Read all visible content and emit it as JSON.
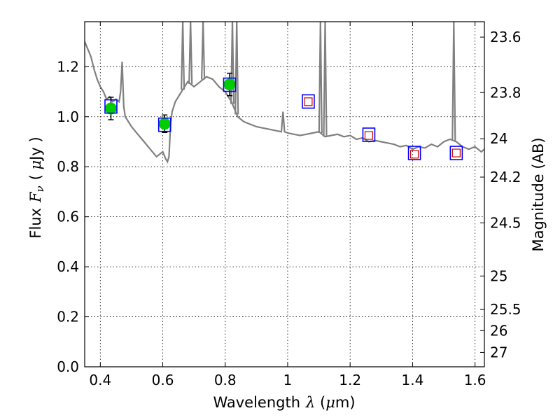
{
  "chart_data": {
    "type": "scatter",
    "xlabel": "Wavelength",
    "xlabel_symbol": "λ",
    "xlabel_unit_open": " (",
    "xlabel_unit_mu": "μ",
    "xlabel_unit_rest": "m)",
    "ylabel": "Flux",
    "ylabel_symbol": "F",
    "ylabel_subscript": "ν",
    "ylabel_unit_open": "( ",
    "ylabel_unit_mu": "μ",
    "ylabel_unit_rest": "Jy )",
    "ylabel_right": "Magnitude (AB)",
    "xlim": [
      0.35,
      1.63
    ],
    "ylim": [
      0.0,
      1.38
    ],
    "grid": true,
    "x_ticks": [
      {
        "value": 0.4,
        "label": "0.4"
      },
      {
        "value": 0.6,
        "label": "0.6"
      },
      {
        "value": 0.8,
        "label": "0.8"
      },
      {
        "value": 1.0,
        "label": "1"
      },
      {
        "value": 1.2,
        "label": "1.2"
      },
      {
        "value": 1.4,
        "label": "1.4"
      },
      {
        "value": 1.6,
        "label": "1.6"
      }
    ],
    "y_ticks": [
      {
        "value": 0.0,
        "label": "0.0"
      },
      {
        "value": 0.2,
        "label": "0.2"
      },
      {
        "value": 0.4,
        "label": "0.4"
      },
      {
        "value": 0.6,
        "label": "0.6"
      },
      {
        "value": 0.8,
        "label": "0.8"
      },
      {
        "value": 1.0,
        "label": "1.0"
      },
      {
        "value": 1.2,
        "label": "1.2"
      }
    ],
    "right_ticks": [
      {
        "label": "23.6",
        "mag": 23.6
      },
      {
        "label": "23.8",
        "mag": 23.8
      },
      {
        "label": "24",
        "mag": 24.0
      },
      {
        "label": "24.2",
        "mag": 24.2
      },
      {
        "label": "24.5",
        "mag": 24.5
      },
      {
        "label": "25",
        "mag": 25.0
      },
      {
        "label": "25.5",
        "mag": 25.5
      },
      {
        "label": "26",
        "mag": 26.0
      },
      {
        "label": "27",
        "mag": 27.0
      }
    ],
    "series": [
      {
        "name": "model spectrum",
        "style": "line",
        "color": "#808080",
        "x": [
          0.35,
          0.36,
          0.37,
          0.38,
          0.39,
          0.4,
          0.41,
          0.42,
          0.43,
          0.44,
          0.45,
          0.46,
          0.465,
          0.47,
          0.475,
          0.48,
          0.5,
          0.52,
          0.54,
          0.56,
          0.58,
          0.6,
          0.61,
          0.615,
          0.62,
          0.625,
          0.63,
          0.64,
          0.66,
          0.68,
          0.7,
          0.72,
          0.74,
          0.76,
          0.78,
          0.8,
          0.81,
          0.82,
          0.84,
          0.86,
          0.88,
          0.9,
          0.92,
          0.94,
          0.96,
          0.98,
          0.985,
          0.99,
          1.0,
          1.02,
          1.04,
          1.06,
          1.08,
          1.1,
          1.12,
          1.14,
          1.16,
          1.18,
          1.2,
          1.22,
          1.24,
          1.26,
          1.28,
          1.3,
          1.32,
          1.34,
          1.36,
          1.38,
          1.4,
          1.42,
          1.44,
          1.46,
          1.48,
          1.5,
          1.52,
          1.54,
          1.56,
          1.58,
          1.6,
          1.62,
          1.63
        ],
        "y": [
          1.3,
          1.27,
          1.24,
          1.19,
          1.15,
          1.12,
          1.1,
          1.07,
          1.08,
          1.06,
          1.07,
          1.06,
          1.1,
          1.22,
          1.04,
          1.0,
          0.96,
          0.93,
          0.9,
          0.87,
          0.84,
          0.86,
          0.83,
          0.82,
          0.84,
          0.97,
          1.02,
          1.06,
          1.1,
          1.14,
          1.12,
          1.14,
          1.16,
          1.15,
          1.12,
          1.1,
          1.08,
          1.06,
          1.0,
          0.98,
          0.97,
          0.96,
          0.955,
          0.95,
          0.945,
          0.94,
          1.02,
          0.94,
          0.935,
          0.93,
          0.925,
          0.93,
          0.935,
          0.94,
          0.92,
          0.925,
          0.93,
          0.92,
          0.925,
          0.91,
          0.915,
          0.9,
          0.905,
          0.9,
          0.895,
          0.89,
          0.88,
          0.885,
          0.87,
          0.88,
          0.875,
          0.89,
          0.88,
          0.9,
          0.91,
          0.9,
          0.88,
          0.87,
          0.88,
          0.86,
          0.87
        ]
      },
      {
        "name": "photometry (detections)",
        "style": "scatter",
        "marker": "circle",
        "color": "#00cc00",
        "x": [
          0.434,
          0.606,
          0.814
        ],
        "y": [
          1.033,
          0.972,
          1.129
        ],
        "yerr": [
          0.045,
          0.035,
          0.045
        ]
      },
      {
        "name": "model photometry",
        "style": "scatter",
        "marker": "square",
        "color": "#0000ff",
        "x": [
          0.434,
          0.606,
          0.814,
          1.066,
          1.26,
          1.406,
          1.54
        ],
        "y": [
          1.041,
          0.968,
          1.128,
          1.061,
          0.928,
          0.855,
          0.855
        ]
      },
      {
        "name": "upper limits",
        "style": "scatter",
        "marker": "small-square",
        "color": "#cc0000",
        "x": [
          1.066,
          1.26,
          1.406,
          1.54
        ],
        "y": [
          1.06,
          0.925,
          0.85,
          0.855
        ]
      }
    ],
    "emission_spikes": [
      {
        "x": 0.664,
        "top": 1.38
      },
      {
        "x": 0.689,
        "top": 1.38
      },
      {
        "x": 0.729,
        "top": 1.38
      },
      {
        "x": 0.823,
        "top": 1.38
      },
      {
        "x": 0.837,
        "top": 1.38
      },
      {
        "x": 1.105,
        "top": 1.38
      },
      {
        "x": 1.12,
        "top": 1.38
      },
      {
        "x": 1.532,
        "top": 1.38
      }
    ]
  }
}
